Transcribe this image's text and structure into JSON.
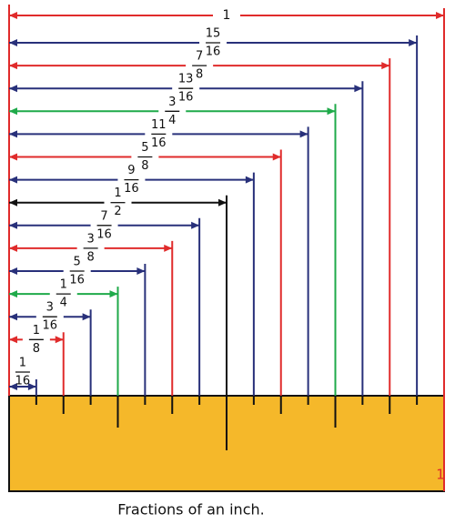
{
  "whole": {
    "label": "1",
    "color": "#e02b2b"
  },
  "fractions": [
    {
      "numerator": 15,
      "denominator": 16,
      "color": "#28307a"
    },
    {
      "numerator": 7,
      "denominator": 8,
      "color": "#e02b2b"
    },
    {
      "numerator": 13,
      "denominator": 16,
      "color": "#28307a"
    },
    {
      "numerator": 3,
      "denominator": 4,
      "color": "#1faa4a"
    },
    {
      "numerator": 11,
      "denominator": 16,
      "color": "#28307a"
    },
    {
      "numerator": 5,
      "denominator": 8,
      "color": "#e02b2b"
    },
    {
      "numerator": 9,
      "denominator": 16,
      "color": "#28307a"
    },
    {
      "numerator": 1,
      "denominator": 2,
      "color": "#111111"
    },
    {
      "numerator": 7,
      "denominator": 16,
      "color": "#28307a"
    },
    {
      "numerator": 3,
      "denominator": 8,
      "color": "#e02b2b"
    },
    {
      "numerator": 5,
      "denominator": 16,
      "color": "#28307a"
    },
    {
      "numerator": 1,
      "denominator": 4,
      "color": "#1faa4a"
    },
    {
      "numerator": 3,
      "denominator": 16,
      "color": "#28307a"
    },
    {
      "numerator": 1,
      "denominator": 8,
      "color": "#e02b2b"
    },
    {
      "numerator": 1,
      "denominator": 16,
      "color": "#28307a"
    }
  ],
  "ruler": {
    "end_label": "1",
    "color": "#f5b82a"
  },
  "caption": "Fractions of an inch."
}
